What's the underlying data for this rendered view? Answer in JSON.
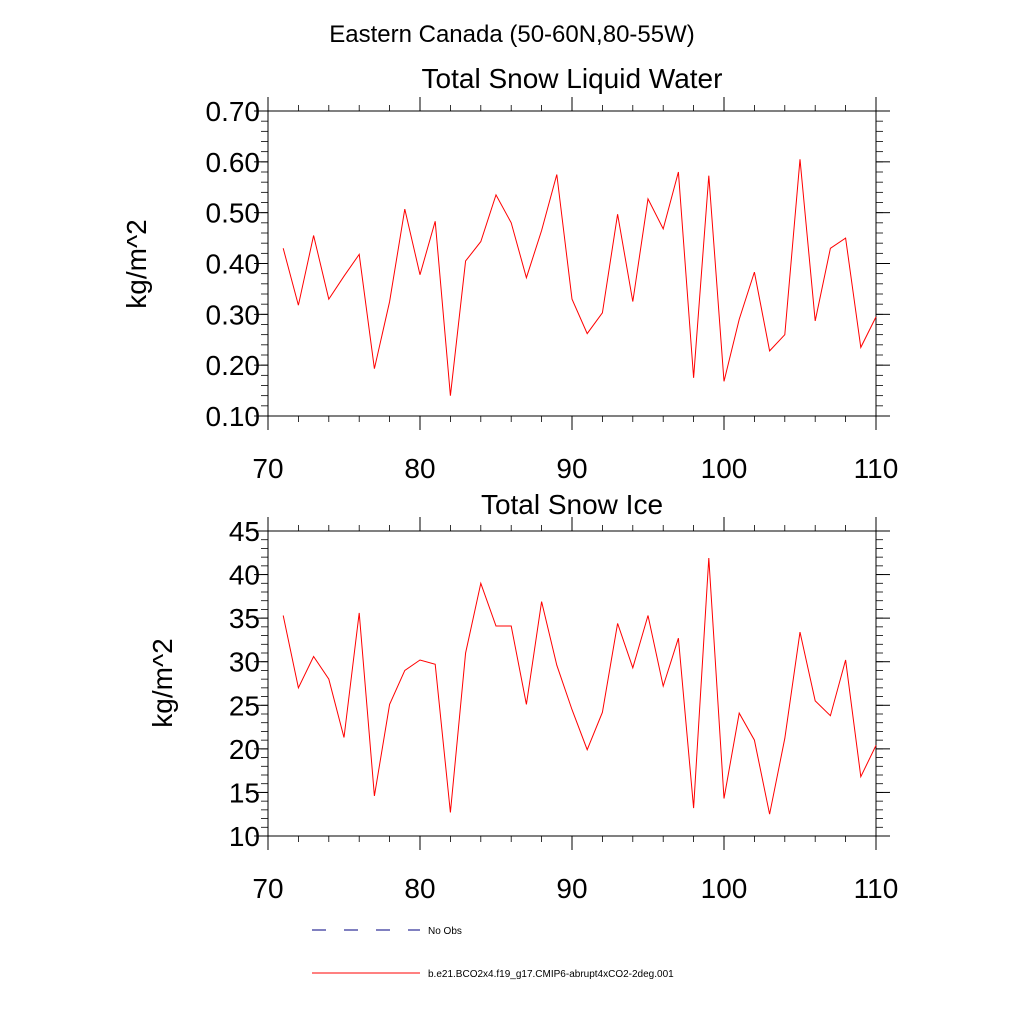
{
  "figure": {
    "title": "Eastern Canada (50-60N,80-55W)"
  },
  "legend": {
    "items": [
      {
        "label": "No Obs",
        "style": "dashed",
        "color": "#000080"
      },
      {
        "label": "b.e21.BCO2x4.f19_g17.CMIP6-abrupt4xCO2-2deg.001",
        "style": "solid",
        "color": "#ff0000"
      }
    ]
  },
  "chart_data": [
    {
      "type": "line",
      "title": "Total Snow Liquid Water",
      "xlabel": "",
      "ylabel": "kg/m^2",
      "xlim": [
        70,
        110
      ],
      "ylim": [
        0.1,
        0.7
      ],
      "xticks": [
        70,
        80,
        90,
        100,
        110
      ],
      "yticks": [
        0.1,
        0.2,
        0.3,
        0.4,
        0.5,
        0.6,
        0.7
      ],
      "ytick_labels": [
        "0.10",
        "0.20",
        "0.30",
        "0.40",
        "0.50",
        "0.60",
        "0.70"
      ],
      "y_minor_step": 0.02,
      "x_minor_step": 2,
      "grid": false,
      "series": [
        {
          "name": "b.e21.BCO2x4.f19_g17.CMIP6-abrupt4xCO2-2deg.001",
          "color": "#ff0000",
          "x": [
            71,
            72,
            73,
            74,
            75,
            76,
            77,
            78,
            79,
            80,
            81,
            82,
            83,
            84,
            85,
            86,
            87,
            88,
            89,
            90,
            91,
            92,
            93,
            94,
            95,
            96,
            97,
            98,
            99,
            100,
            101,
            102,
            103,
            104,
            105,
            106,
            107,
            108,
            109,
            110
          ],
          "values": [
            0.43,
            0.318,
            0.455,
            0.33,
            0.375,
            0.418,
            0.193,
            0.325,
            0.507,
            0.378,
            0.483,
            0.14,
            0.405,
            0.443,
            0.535,
            0.48,
            0.372,
            0.465,
            0.575,
            0.33,
            0.262,
            0.303,
            0.497,
            0.325,
            0.527,
            0.468,
            0.58,
            0.175,
            0.573,
            0.168,
            0.29,
            0.383,
            0.228,
            0.26,
            0.605,
            0.287,
            0.43,
            0.45,
            0.235,
            0.295
          ]
        }
      ]
    },
    {
      "type": "line",
      "title": "Total Snow Ice",
      "xlabel": "",
      "ylabel": "kg/m^2",
      "xlim": [
        70,
        110
      ],
      "ylim": [
        10,
        45
      ],
      "xticks": [
        70,
        80,
        90,
        100,
        110
      ],
      "yticks": [
        10,
        15,
        20,
        25,
        30,
        35,
        40,
        45
      ],
      "ytick_labels": [
        "10",
        "15",
        "20",
        "25",
        "30",
        "35",
        "40",
        "45"
      ],
      "y_minor_step": 1,
      "x_minor_step": 2,
      "grid": false,
      "series": [
        {
          "name": "b.e21.BCO2x4.f19_g17.CMIP6-abrupt4xCO2-2deg.001",
          "color": "#ff0000",
          "x": [
            71,
            72,
            73,
            74,
            75,
            76,
            77,
            78,
            79,
            80,
            81,
            82,
            83,
            84,
            85,
            86,
            87,
            88,
            89,
            90,
            91,
            92,
            93,
            94,
            95,
            96,
            97,
            98,
            99,
            100,
            101,
            102,
            103,
            104,
            105,
            106,
            107,
            108,
            109,
            110
          ],
          "values": [
            35.3,
            27.0,
            30.6,
            28.0,
            21.3,
            35.6,
            14.6,
            25.1,
            29.0,
            30.2,
            29.7,
            12.7,
            31.0,
            39.0,
            34.1,
            34.1,
            25.1,
            36.9,
            29.6,
            24.5,
            19.9,
            24.2,
            34.4,
            29.3,
            35.3,
            27.2,
            32.7,
            13.2,
            41.9,
            14.3,
            24.1,
            21.0,
            12.5,
            21.2,
            33.4,
            25.5,
            23.8,
            30.2,
            16.8,
            20.4
          ]
        }
      ]
    }
  ]
}
